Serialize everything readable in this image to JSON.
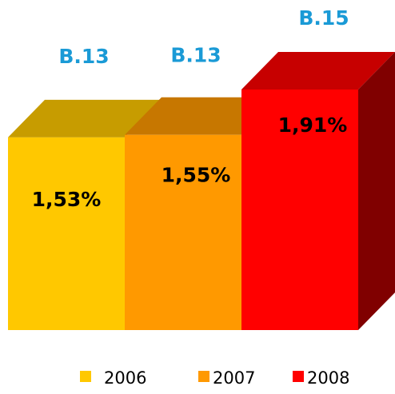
{
  "chart_data": {
    "type": "bar3d",
    "series": [
      {
        "name": "2006",
        "color": "#ffc800",
        "values": [
          1.53
        ],
        "value_labels": [
          "1,53%"
        ],
        "annotation": "B.13"
      },
      {
        "name": "2007",
        "color": "#ff9900",
        "values": [
          1.55
        ],
        "value_labels": [
          "1,55%"
        ],
        "annotation": "B.13"
      },
      {
        "name": "2008",
        "color": "#ff0000",
        "values": [
          1.91
        ],
        "value_labels": [
          "1,91%"
        ],
        "annotation": "B.15"
      }
    ]
  }
}
